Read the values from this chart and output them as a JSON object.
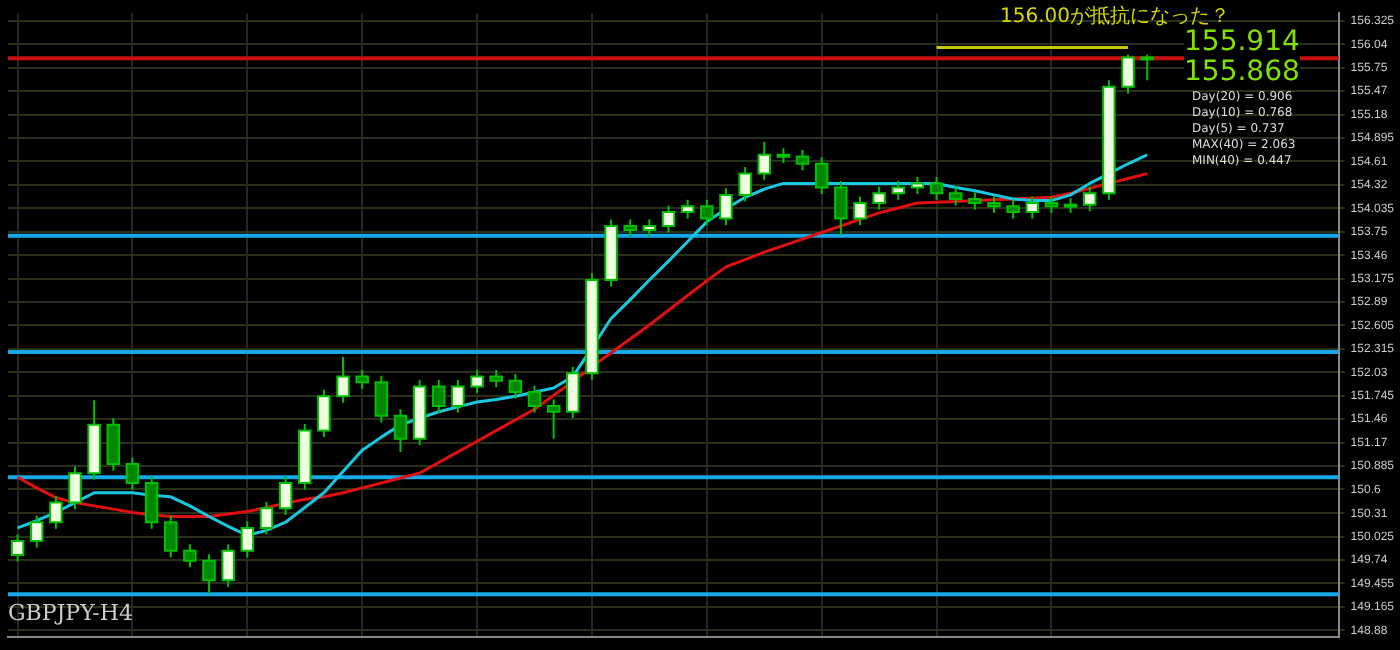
{
  "chart_data": {
    "type": "candlestick",
    "categories": [
      null,
      null,
      null,
      null,
      null,
      null,
      null,
      null,
      null,
      null,
      null,
      null,
      null,
      null,
      null,
      null,
      null,
      null,
      null,
      null,
      null,
      null,
      null,
      null,
      null,
      null,
      null,
      null,
      null,
      null,
      null,
      null,
      null,
      null,
      null,
      null,
      null,
      null,
      null,
      null,
      null,
      null,
      null,
      null,
      null,
      null,
      null,
      null,
      null,
      null,
      null,
      null,
      null,
      null,
      null,
      null,
      null,
      null,
      null,
      null
    ],
    "ohlc": [
      [
        149.8,
        150.05,
        149.72,
        149.97
      ],
      [
        149.97,
        150.28,
        149.89,
        150.2
      ],
      [
        150.2,
        150.52,
        150.12,
        150.44
      ],
      [
        150.44,
        150.88,
        150.36,
        150.8
      ],
      [
        150.8,
        151.69,
        150.72,
        151.39
      ],
      [
        151.39,
        151.47,
        150.83,
        150.91
      ],
      [
        150.91,
        150.99,
        150.6,
        150.68
      ],
      [
        150.68,
        150.76,
        150.12,
        150.2
      ],
      [
        150.2,
        150.28,
        149.77,
        149.85
      ],
      [
        149.85,
        149.93,
        149.65,
        149.73
      ],
      [
        149.73,
        149.81,
        149.33,
        149.49
      ],
      [
        149.49,
        149.93,
        149.41,
        149.85
      ],
      [
        149.85,
        150.21,
        149.77,
        150.13
      ],
      [
        150.13,
        150.45,
        150.05,
        150.37
      ],
      [
        150.37,
        150.76,
        150.29,
        150.68
      ],
      [
        150.68,
        151.4,
        150.6,
        151.32
      ],
      [
        151.32,
        151.82,
        151.24,
        151.74
      ],
      [
        151.74,
        152.22,
        151.66,
        151.98
      ],
      [
        151.98,
        152.06,
        151.83,
        151.91
      ],
      [
        151.91,
        151.99,
        151.42,
        151.5
      ],
      [
        151.5,
        151.58,
        151.06,
        151.22
      ],
      [
        151.22,
        151.94,
        151.14,
        151.86
      ],
      [
        151.86,
        151.94,
        151.54,
        151.62
      ],
      [
        151.62,
        151.94,
        151.54,
        151.86
      ],
      [
        151.86,
        152.06,
        151.78,
        151.98
      ],
      [
        151.98,
        152.06,
        151.85,
        151.93
      ],
      [
        151.93,
        152.01,
        151.71,
        151.79
      ],
      [
        151.79,
        151.87,
        151.54,
        151.62
      ],
      [
        151.62,
        151.7,
        151.22,
        151.55
      ],
      [
        151.55,
        152.1,
        151.47,
        152.02
      ],
      [
        152.02,
        153.24,
        151.94,
        153.16
      ],
      [
        153.16,
        153.9,
        153.08,
        153.82
      ],
      [
        153.82,
        153.9,
        153.69,
        153.77
      ],
      [
        153.77,
        153.9,
        153.69,
        153.82
      ],
      [
        153.82,
        154.07,
        153.74,
        153.99
      ],
      [
        153.99,
        154.14,
        153.91,
        154.06
      ],
      [
        154.06,
        154.14,
        153.83,
        153.91
      ],
      [
        153.91,
        154.28,
        153.83,
        154.2
      ],
      [
        154.2,
        154.54,
        154.12,
        154.46
      ],
      [
        154.46,
        154.85,
        154.38,
        154.69
      ],
      [
        154.69,
        154.77,
        154.59,
        154.67
      ],
      [
        154.67,
        154.75,
        154.5,
        154.58
      ],
      [
        154.58,
        154.66,
        154.21,
        154.29
      ],
      [
        154.29,
        154.37,
        153.71,
        153.91
      ],
      [
        153.91,
        154.18,
        153.83,
        154.1
      ],
      [
        154.1,
        154.3,
        154.02,
        154.22
      ],
      [
        154.22,
        154.37,
        154.14,
        154.29
      ],
      [
        154.29,
        154.42,
        154.21,
        154.34
      ],
      [
        154.34,
        154.42,
        154.14,
        154.22
      ],
      [
        154.22,
        154.3,
        154.07,
        154.15
      ],
      [
        154.15,
        154.23,
        154.02,
        154.1
      ],
      [
        154.1,
        154.18,
        153.98,
        154.06
      ],
      [
        154.06,
        154.14,
        153.91,
        153.99
      ],
      [
        153.99,
        154.18,
        153.91,
        154.1
      ],
      [
        154.1,
        154.18,
        153.98,
        154.06
      ],
      [
        154.06,
        154.16,
        153.98,
        154.08
      ],
      [
        154.08,
        154.3,
        154.0,
        154.22
      ],
      [
        154.22,
        155.6,
        154.14,
        155.52
      ],
      [
        155.52,
        155.914,
        155.44,
        155.88
      ],
      [
        155.88,
        155.914,
        155.6,
        155.868
      ]
    ],
    "series": [
      {
        "type": "line",
        "color": "#18c8e0",
        "values": [
          150.13,
          150.22,
          150.32,
          150.44,
          150.56,
          150.56,
          150.56,
          150.53,
          150.51,
          150.4,
          150.27,
          150.15,
          150.04,
          150.1,
          150.2,
          150.38,
          150.56,
          150.82,
          151.08,
          151.24,
          151.39,
          151.47,
          151.55,
          151.61,
          151.67,
          151.7,
          151.74,
          151.79,
          151.84,
          151.98,
          152.33,
          152.69,
          152.92,
          153.16,
          153.39,
          153.63,
          153.87,
          154.03,
          154.17,
          154.27,
          154.34,
          154.34,
          154.34,
          154.34,
          154.34,
          154.34,
          154.34,
          154.34,
          154.34,
          154.29,
          154.25,
          154.2,
          154.15,
          154.13,
          154.13,
          154.2,
          154.34,
          154.46,
          154.58,
          154.69
        ]
      },
      {
        "type": "line",
        "color": "#e01010",
        "values": [
          150.75,
          150.62,
          150.5,
          150.44,
          150.4,
          150.36,
          150.32,
          150.29,
          150.27,
          150.27,
          150.27,
          150.3,
          150.33,
          150.38,
          150.43,
          150.48,
          150.51,
          150.56,
          150.62,
          150.68,
          150.74,
          150.8,
          150.93,
          151.06,
          151.19,
          151.32,
          151.45,
          151.58,
          151.75,
          151.92,
          152.1,
          152.27,
          152.44,
          152.61,
          152.79,
          152.97,
          153.15,
          153.32,
          153.41,
          153.5,
          153.58,
          153.66,
          153.74,
          153.82,
          153.9,
          153.98,
          154.04,
          154.1,
          154.11,
          154.12,
          154.13,
          154.14,
          154.15,
          154.16,
          154.17,
          154.22,
          154.28,
          154.34,
          154.4,
          154.46
        ]
      },
      {
        "type": "line",
        "color": "#c8c800",
        "values": [
          null,
          null,
          null,
          null,
          null,
          null,
          null,
          null,
          null,
          null,
          null,
          null,
          null,
          null,
          null,
          null,
          null,
          null,
          null,
          null,
          null,
          null,
          null,
          null,
          null,
          null,
          null,
          null,
          null,
          null,
          null,
          null,
          null,
          null,
          null,
          null,
          null,
          null,
          null,
          null,
          null,
          null,
          null,
          null,
          null,
          null,
          null,
          null,
          156.0,
          156.0,
          156.0,
          156.0,
          156.0,
          156.0,
          156.0,
          156.0,
          156.0,
          156.0,
          156.0,
          null
        ]
      }
    ],
    "ylim": [
      148.8,
      156.42
    ],
    "yticks": [
      148.88,
      149.165,
      149.455,
      149.74,
      150.025,
      150.31,
      150.6,
      150.885,
      151.17,
      151.46,
      151.745,
      152.03,
      152.315,
      152.605,
      152.89,
      153.175,
      153.46,
      153.75,
      154.035,
      154.32,
      154.61,
      154.895,
      155.18,
      155.47,
      155.75,
      156.04,
      156.325
    ],
    "ref_lines": [
      {
        "axis": "y",
        "value": 153.7,
        "color": "#18a8e8"
      },
      {
        "axis": "y",
        "value": 152.28,
        "color": "#18a8e8"
      },
      {
        "axis": "y",
        "value": 150.75,
        "color": "#18a8e8"
      },
      {
        "axis": "y",
        "value": 149.32,
        "color": "#18a8e8"
      },
      {
        "axis": "y",
        "value": 155.868,
        "color": "#c81010"
      }
    ],
    "grid": true,
    "tick_labels": "y",
    "annotations": [
      "156.00が抵抗になった？",
      "155.914",
      "155.868",
      "Day(20) = 0.906",
      "Day(10) = 0.768",
      "Day(5) = 0.737",
      "MAX(40) = 2.063",
      "MIN(40) = 0.447",
      "GBPJPY-H4"
    ]
  }
}
